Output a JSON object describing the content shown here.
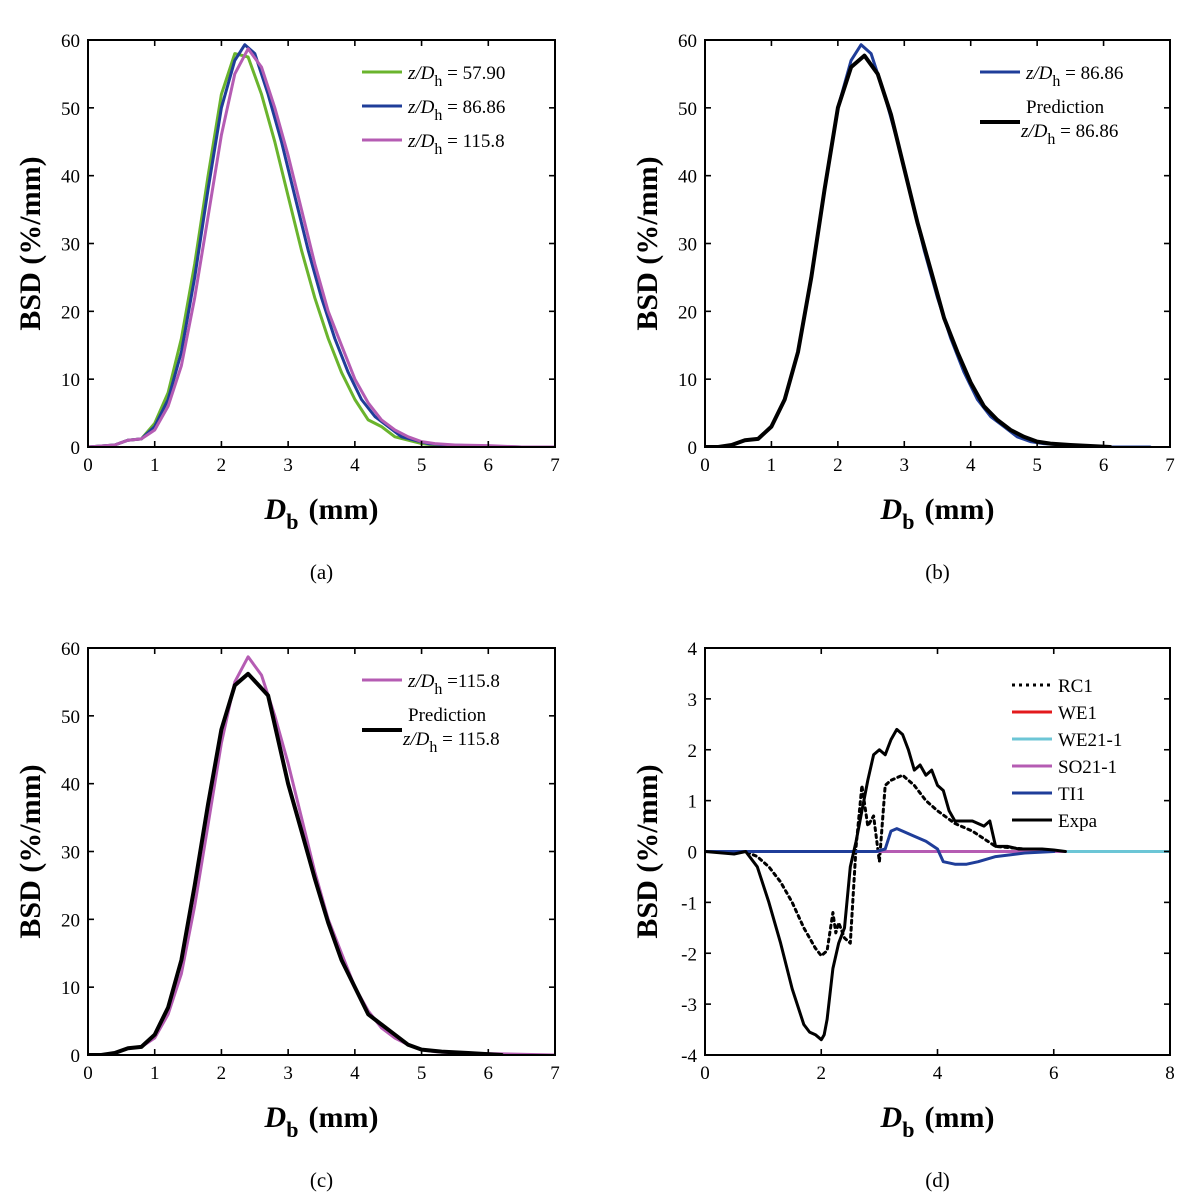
{
  "chart_data": [
    {
      "panel": "a",
      "caption": "(a)",
      "type": "line",
      "xlabel": "D",
      "xlabel_sub": "b",
      "xlabel_unit": "(mm)",
      "ylabel": "BSD (%/mm)",
      "xlim": [
        0,
        7
      ],
      "ylim": [
        0,
        60
      ],
      "xticks": [
        0,
        1,
        2,
        3,
        4,
        5,
        6,
        7
      ],
      "yticks": [
        0,
        10,
        20,
        30,
        40,
        50,
        60
      ],
      "legend_position": "top-right",
      "series": [
        {
          "name_prefix": "z/D",
          "name_sub": "h",
          "name_suffix": " = 57.90",
          "color": "#6ab42d",
          "width": 3,
          "x": [
            0,
            0.4,
            0.6,
            0.8,
            1.0,
            1.2,
            1.4,
            1.6,
            1.8,
            2.0,
            2.2,
            2.4,
            2.6,
            2.8,
            3.0,
            3.2,
            3.4,
            3.6,
            3.8,
            4.0,
            4.2,
            4.4,
            4.6,
            4.8,
            5.0,
            5.2,
            5.5,
            6.0,
            6.5,
            7.0
          ],
          "y": [
            0,
            0.3,
            1.0,
            1.2,
            3.5,
            8,
            16,
            27,
            40,
            52,
            58,
            57.5,
            52,
            45,
            37,
            29,
            22,
            16,
            11,
            7,
            4,
            3,
            1.5,
            1.0,
            0.5,
            0.3,
            0.2,
            0.1,
            0,
            0
          ]
        },
        {
          "name_prefix": "z/D",
          "name_sub": "h",
          "name_suffix": " = 86.86",
          "color": "#1f3d99",
          "width": 3,
          "x": [
            0,
            0.4,
            0.6,
            0.8,
            1.0,
            1.2,
            1.4,
            1.6,
            1.8,
            2.0,
            2.2,
            2.35,
            2.5,
            2.7,
            2.9,
            3.1,
            3.3,
            3.5,
            3.7,
            3.9,
            4.1,
            4.3,
            4.5,
            4.7,
            4.9,
            5.1,
            5.4,
            6.0,
            6.5,
            7.0
          ],
          "y": [
            0,
            0.3,
            1.0,
            1.2,
            3,
            7,
            14,
            25,
            38,
            50,
            57,
            59.3,
            58,
            52,
            45,
            37,
            29,
            22,
            16,
            11,
            7,
            4.5,
            3,
            1.5,
            1.0,
            0.5,
            0.3,
            0.1,
            0,
            0
          ]
        },
        {
          "name_prefix": "z/D",
          "name_sub": "h",
          "name_suffix": " = 115.8",
          "color": "#b55cb3",
          "width": 3,
          "x": [
            0,
            0.4,
            0.6,
            0.8,
            1.0,
            1.2,
            1.4,
            1.6,
            1.8,
            2.0,
            2.2,
            2.4,
            2.6,
            2.8,
            3.0,
            3.2,
            3.4,
            3.6,
            3.8,
            4.0,
            4.2,
            4.4,
            4.6,
            4.8,
            5.0,
            5.2,
            5.5,
            6.0,
            6.5,
            7.0
          ],
          "y": [
            0,
            0.3,
            1.0,
            1.2,
            2.5,
            6,
            12,
            22,
            34,
            46,
            55,
            58.7,
            56,
            50,
            43,
            35,
            27,
            20,
            15,
            10,
            6.5,
            4,
            2.5,
            1.5,
            0.8,
            0.5,
            0.3,
            0.2,
            0,
            0
          ]
        }
      ]
    },
    {
      "panel": "b",
      "caption": "(b)",
      "type": "line",
      "xlabel": "D",
      "xlabel_sub": "b",
      "xlabel_unit": "(mm)",
      "ylabel": "BSD (%/mm)",
      "xlim": [
        0,
        7
      ],
      "ylim": [
        0,
        60
      ],
      "xticks": [
        0,
        1,
        2,
        3,
        4,
        5,
        6,
        7
      ],
      "yticks": [
        0,
        10,
        20,
        30,
        40,
        50,
        60
      ],
      "legend_position": "top-right",
      "series": [
        {
          "name_prefix": "z/D",
          "name_sub": "h",
          "name_suffix": " = 86.86",
          "color": "#1f3d99",
          "width": 3,
          "x": [
            0,
            0.2,
            0.4,
            0.6,
            0.8,
            1.0,
            1.2,
            1.4,
            1.6,
            1.8,
            2.0,
            2.2,
            2.35,
            2.5,
            2.7,
            2.9,
            3.1,
            3.3,
            3.5,
            3.7,
            3.9,
            4.1,
            4.3,
            4.5,
            4.7,
            4.9,
            5.1,
            5.4,
            6.0,
            6.7
          ],
          "y": [
            0,
            0,
            0.3,
            1.0,
            1.2,
            3,
            7,
            14,
            25,
            38,
            50,
            57,
            59.3,
            58,
            52,
            45,
            37,
            29,
            22,
            16,
            11,
            7,
            4.5,
            3,
            1.5,
            0.8,
            0.5,
            0.3,
            0,
            0
          ]
        },
        {
          "name": "Prediction",
          "name_prefix": "z/D",
          "name_sub": "h",
          "name_suffix": " = 86.86",
          "color": "#000000",
          "width": 4,
          "x": [
            0,
            0.2,
            0.4,
            0.6,
            0.8,
            1.0,
            1.2,
            1.4,
            1.6,
            1.8,
            2.0,
            2.2,
            2.4,
            2.6,
            2.8,
            3.0,
            3.2,
            3.4,
            3.6,
            3.8,
            4.0,
            4.2,
            4.4,
            4.6,
            4.8,
            5.0,
            5.2,
            5.5,
            6.1
          ],
          "y": [
            0,
            0,
            0.3,
            1.0,
            1.2,
            3,
            7,
            14,
            25,
            38,
            50,
            56,
            57.7,
            55,
            49,
            41,
            33,
            26,
            19,
            14,
            9.5,
            6,
            4,
            2.5,
            1.5,
            0.8,
            0.5,
            0.3,
            0
          ]
        }
      ]
    },
    {
      "panel": "c",
      "caption": "(c)",
      "type": "line",
      "xlabel": "D",
      "xlabel_sub": "b",
      "xlabel_unit": "(mm)",
      "ylabel": "BSD (%/mm)",
      "xlim": [
        0,
        7
      ],
      "ylim": [
        0,
        60
      ],
      "xticks": [
        0,
        1,
        2,
        3,
        4,
        5,
        6,
        7
      ],
      "yticks": [
        0,
        10,
        20,
        30,
        40,
        50,
        60
      ],
      "legend_position": "top-right",
      "series": [
        {
          "name_prefix": "z/D",
          "name_sub": "h",
          "name_suffix": " =115.8",
          "color": "#b55cb3",
          "width": 3,
          "x": [
            0,
            0.2,
            0.4,
            0.6,
            0.8,
            1.0,
            1.2,
            1.4,
            1.6,
            1.8,
            2.0,
            2.2,
            2.4,
            2.6,
            2.8,
            3.0,
            3.2,
            3.4,
            3.6,
            3.8,
            4.0,
            4.2,
            4.4,
            4.6,
            4.8,
            5.0,
            5.2,
            5.5,
            6.0,
            7.0
          ],
          "y": [
            0,
            0,
            0.3,
            1.0,
            1.2,
            2.5,
            6,
            12,
            22,
            34,
            46,
            55,
            58.7,
            56,
            50,
            43,
            35,
            27,
            20,
            15,
            10,
            6.5,
            4,
            2.5,
            1.5,
            0.8,
            0.5,
            0.3,
            0.2,
            0
          ]
        },
        {
          "name": "Prediction",
          "name_prefix": "z/D",
          "name_sub": "h",
          "name_suffix": " = 115.8",
          "color": "#000000",
          "width": 4,
          "x": [
            0,
            0.2,
            0.4,
            0.6,
            0.8,
            1.0,
            1.2,
            1.4,
            1.6,
            1.8,
            2.0,
            2.2,
            2.4,
            2.7,
            3.0,
            3.2,
            3.4,
            3.6,
            3.8,
            4.0,
            4.2,
            4.4,
            4.6,
            4.8,
            5.0,
            5.3,
            5.7,
            6.2
          ],
          "y": [
            0,
            0,
            0.3,
            1.0,
            1.2,
            3,
            7,
            14,
            25,
            37,
            48,
            54.5,
            56.2,
            53,
            40,
            33,
            26,
            19.5,
            14,
            10,
            6,
            4.5,
            3,
            1.5,
            0.8,
            0.5,
            0.3,
            0
          ]
        }
      ]
    },
    {
      "panel": "d",
      "caption": "(d)",
      "type": "line",
      "xlabel": "D",
      "xlabel_sub": "b",
      "xlabel_unit": "(mm)",
      "ylabel": "BSD (%/mm)",
      "xlim": [
        0,
        8
      ],
      "ylim": [
        -4,
        4
      ],
      "xticks": [
        0,
        2,
        4,
        6,
        8
      ],
      "yticks": [
        -4,
        -3,
        -2,
        -1,
        0,
        1,
        2,
        3,
        4
      ],
      "legend_position": "top-right",
      "series": [
        {
          "name": "RC1",
          "color": "#000000",
          "width": 3,
          "dash": "3,4",
          "x": [
            0,
            0.7,
            0.9,
            1.1,
            1.3,
            1.5,
            1.7,
            1.9,
            2.0,
            2.1,
            2.2,
            2.25,
            2.3,
            2.4,
            2.5,
            2.6,
            2.7,
            2.8,
            2.9,
            3.0,
            3.1,
            3.2,
            3.4,
            3.6,
            3.8,
            4.0,
            4.3,
            4.6,
            5.0,
            5.5,
            6.0,
            7.0,
            8.0
          ],
          "y": [
            0,
            0,
            -0.1,
            -0.3,
            -0.6,
            -1.0,
            -1.5,
            -1.9,
            -2.05,
            -1.95,
            -1.2,
            -1.6,
            -1.4,
            -1.7,
            -1.8,
            0.1,
            1.3,
            0.5,
            0.7,
            -0.2,
            1.3,
            1.4,
            1.5,
            1.3,
            1.0,
            0.8,
            0.55,
            0.4,
            0.1,
            0.05,
            0,
            0,
            0
          ]
        },
        {
          "name": "WE1",
          "color": "#e31a1c",
          "width": 3,
          "x": [
            0,
            8
          ],
          "y": [
            0,
            0
          ]
        },
        {
          "name": "WE21-1",
          "color": "#6cc6d6",
          "width": 3,
          "x": [
            0,
            8
          ],
          "y": [
            0,
            0
          ]
        },
        {
          "name": "SO21-1",
          "color": "#b55cb3",
          "width": 3,
          "x": [
            0,
            6.2
          ],
          "y": [
            0,
            0
          ]
        },
        {
          "name": "TI1",
          "color": "#1f3d99",
          "width": 3,
          "x": [
            0,
            2.95,
            3.1,
            3.2,
            3.3,
            3.4,
            3.6,
            3.8,
            4.0,
            4.1,
            4.3,
            4.5,
            4.7,
            5.0,
            5.5,
            6.0
          ],
          "y": [
            0,
            0,
            0.05,
            0.4,
            0.45,
            0.4,
            0.3,
            0.2,
            0.05,
            -0.2,
            -0.25,
            -0.25,
            -0.2,
            -0.1,
            -0.03,
            0
          ]
        },
        {
          "name": "Expa",
          "color": "#000000",
          "width": 3,
          "x": [
            0,
            0.5,
            0.7,
            0.9,
            1.1,
            1.3,
            1.5,
            1.7,
            1.8,
            1.9,
            2.0,
            2.05,
            2.1,
            2.2,
            2.3,
            2.4,
            2.5,
            2.6,
            2.7,
            2.8,
            2.9,
            3.0,
            3.1,
            3.2,
            3.3,
            3.4,
            3.5,
            3.6,
            3.7,
            3.8,
            3.9,
            4.0,
            4.1,
            4.2,
            4.3,
            4.4,
            4.6,
            4.8,
            4.9,
            5.0,
            5.2,
            5.4,
            5.6,
            5.8,
            6.0,
            6.2
          ],
          "y": [
            0,
            -0.05,
            0,
            -0.3,
            -1.0,
            -1.8,
            -2.7,
            -3.4,
            -3.55,
            -3.6,
            -3.7,
            -3.6,
            -3.3,
            -2.3,
            -1.8,
            -1.5,
            -0.3,
            0.2,
            0.8,
            1.4,
            1.9,
            2.0,
            1.9,
            2.2,
            2.4,
            2.3,
            2.0,
            1.6,
            1.7,
            1.5,
            1.6,
            1.3,
            1.2,
            0.8,
            0.6,
            0.6,
            0.6,
            0.5,
            0.6,
            0.1,
            0.1,
            0.05,
            0.05,
            0.05,
            0.03,
            0
          ]
        }
      ]
    }
  ]
}
